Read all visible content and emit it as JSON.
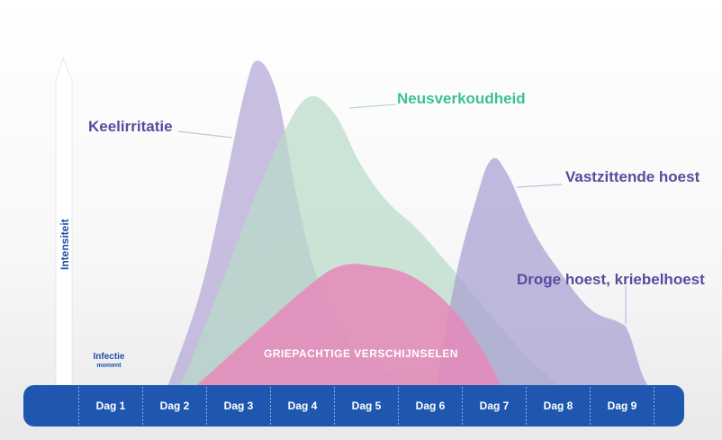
{
  "chart_data": {
    "type": "area",
    "title": "",
    "ylabel": "Intensiteit",
    "categories": [
      "Dag 1",
      "Dag 2",
      "Dag 3",
      "Dag 4",
      "Dag 5",
      "Dag 6",
      "Dag 7",
      "Dag 8",
      "Dag 9"
    ],
    "annotation": {
      "line1": "Infectie",
      "line2": "moment"
    },
    "inner_label": "GRIEPACHTIGE VERSCHIJNSELEN",
    "ylim": [
      0,
      100
    ],
    "grid": false,
    "series": [
      {
        "name": "Keelirritatie",
        "color": "#b4a8d6",
        "label_color": "#5b4a9e",
        "points": [
          [
            1.9,
            0
          ],
          [
            2.4,
            28
          ],
          [
            2.8,
            62
          ],
          [
            3.1,
            89
          ],
          [
            3.3,
            98
          ],
          [
            3.6,
            88
          ],
          [
            3.9,
            58
          ],
          [
            4.2,
            34
          ],
          [
            4.6,
            17
          ],
          [
            5.0,
            8
          ],
          [
            5.5,
            3
          ],
          [
            6.0,
            0
          ]
        ]
      },
      {
        "name": "Neusverkoudheid",
        "color": "#b8dbc8",
        "label_color": "#3dbf97",
        "points": [
          [
            2.1,
            0
          ],
          [
            2.6,
            24
          ],
          [
            3.2,
            54
          ],
          [
            3.7,
            76
          ],
          [
            4.1,
            87
          ],
          [
            4.5,
            82
          ],
          [
            4.9,
            67
          ],
          [
            5.3,
            56
          ],
          [
            5.8,
            47
          ],
          [
            6.3,
            36
          ],
          [
            6.9,
            22
          ],
          [
            7.5,
            9
          ],
          [
            8.0,
            0
          ]
        ]
      },
      {
        "name": "Droge hoest, kriebelhoest",
        "color": "#a99fd3",
        "label_color": "#5b4a9e",
        "points": [
          [
            6.1,
            0
          ],
          [
            6.4,
            33
          ],
          [
            6.7,
            55
          ],
          [
            6.95,
            68
          ],
          [
            7.2,
            64
          ],
          [
            7.6,
            47
          ],
          [
            8.0,
            35
          ],
          [
            8.5,
            23
          ],
          [
            8.95,
            19
          ],
          [
            9.1,
            16
          ],
          [
            9.3,
            4
          ],
          [
            9.4,
            0
          ]
        ]
      },
      {
        "name": "GRIEPACHTIGE VERSCHIJNSELEN",
        "color": "#e58ab9",
        "label_color": "#ffffff",
        "points": [
          [
            2.35,
            0
          ],
          [
            3.1,
            13
          ],
          [
            4.1,
            30
          ],
          [
            4.6,
            36
          ],
          [
            5.1,
            36
          ],
          [
            5.7,
            33
          ],
          [
            6.3,
            24
          ],
          [
            6.8,
            11
          ],
          [
            7.1,
            0
          ]
        ]
      }
    ],
    "callouts": [
      {
        "text": "Keelirritatie",
        "color": "#5b4a9e"
      },
      {
        "text": "Neusverkoudheid",
        "color": "#3dbf97"
      },
      {
        "text": "Vastzittende hoest",
        "color": "#5b4a9e"
      },
      {
        "text": "Droge hoest, kriebelhoest",
        "color": "#5b4a9e"
      }
    ],
    "axis_bar_color": "#1f57b0"
  }
}
